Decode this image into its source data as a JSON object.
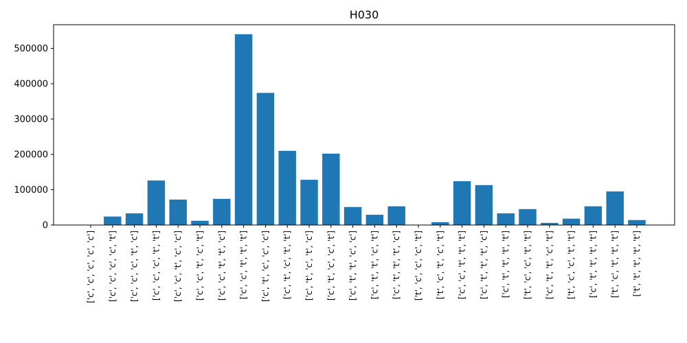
{
  "chart_data": {
    "type": "bar",
    "title": "H030",
    "xlabel": "",
    "ylabel": "",
    "categories": [
      "['c', 'c', 'c', 'c', 'c']",
      "['c', 'c', 'c', 'c', 't']",
      "['c', 'c', 'c', 't', 'c']",
      "['c', 'c', 'c', 't', 't']",
      "['c', 'c', 't', 'c', 'c']",
      "['c', 'c', 't', 'c', 't']",
      "['c', 'c', 't', 't', 'c']",
      "['c', 'c', 't', 't', 't']",
      "['c', 't', 'c', 'c', 'c']",
      "['c', 't', 'c', 't', 't']",
      "['c', 't', 'c', 't', 'c']",
      "['c', 't', 'c', 'c', 't']",
      "['c', 't', 't', 'c', 'c']",
      "['c', 't', 't', 'c', 't']",
      "['c', 't', 't', 't', 'c']",
      "['t', 'c', 'c', 'c', 't']",
      "['t', 'c', 't', 'c', 't']",
      "['c', 'c', 't', 't', 't']",
      "['c', 't', 't', 't', 'c']",
      "['c', 't', 't', 't', 't']",
      "['t', 'c', 'c', 't', 't']",
      "['c', 't', 't', 'c', 't']",
      "['t', 'c', 'c', 't', 't']",
      "['c', 't', 't', 't', 't']",
      "['t', 'c', 't', 't', 't']",
      "['t', 't', 't', 't', 't']"
    ],
    "values": [
      0,
      24000,
      33000,
      126000,
      72000,
      12000,
      74000,
      540000,
      374000,
      210000,
      128000,
      202000,
      51000,
      29000,
      53000,
      0,
      8000,
      124000,
      113000,
      33000,
      45000,
      6000,
      18000,
      53000,
      95000,
      14000
    ],
    "ylim": [
      0,
      567000
    ],
    "yticks": [
      0,
      100000,
      200000,
      300000,
      400000,
      500000
    ],
    "ytick_labels": [
      "0",
      "100000",
      "200000",
      "300000",
      "400000",
      "500000"
    ],
    "grid": false,
    "bar_color": "#1f77b4"
  }
}
